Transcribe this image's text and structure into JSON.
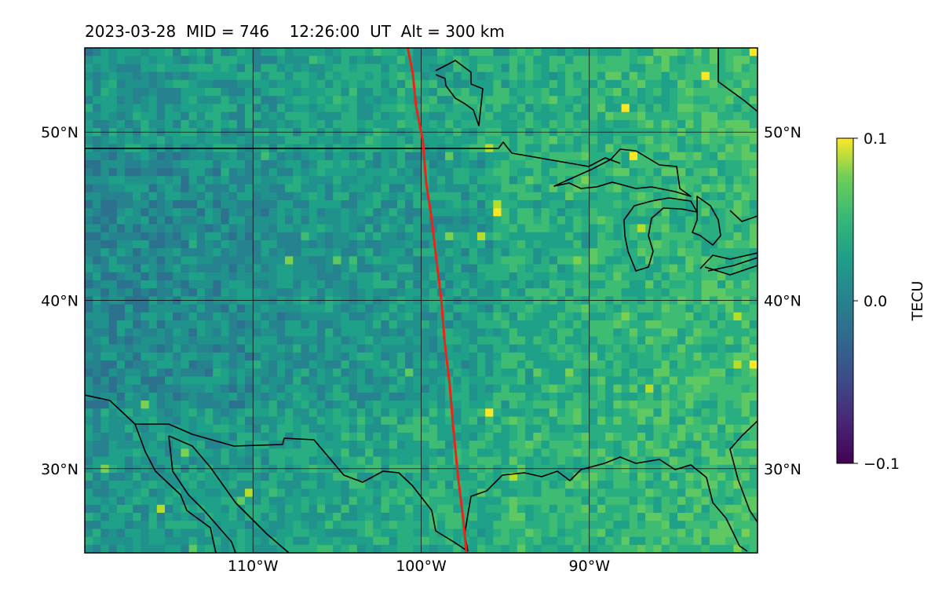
{
  "title": "2023-03-28  MID = 746    12:26:00  UT  Alt = 300 km",
  "map": {
    "extent": {
      "lon_min": -120,
      "lon_max": -80,
      "lat_min": 25,
      "lat_max": 55
    },
    "lat_ticks": [
      {
        "value": 50,
        "label": "50°N"
      },
      {
        "value": 40,
        "label": "40°N"
      },
      {
        "value": 30,
        "label": "30°N"
      }
    ],
    "lon_ticks": [
      {
        "value": -110,
        "label": "110°W"
      },
      {
        "value": -100,
        "label": "100°W"
      },
      {
        "value": -90,
        "label": "90°W"
      }
    ],
    "grid": true,
    "track": {
      "color": "#e8251b",
      "points": [
        [
          -100.8,
          55
        ],
        [
          -100.5,
          53.5
        ],
        [
          -100.3,
          51.5
        ],
        [
          -99.9,
          49.5
        ],
        [
          -99.7,
          47
        ],
        [
          -99.4,
          45
        ],
        [
          -99.1,
          42.5
        ],
        [
          -98.8,
          40
        ],
        [
          -98.6,
          37.5
        ],
        [
          -98.3,
          35
        ],
        [
          -98.1,
          32.5
        ],
        [
          -97.8,
          29.5
        ],
        [
          -97.5,
          27
        ],
        [
          -97.3,
          25
        ]
      ]
    }
  },
  "colorbar": {
    "label": "TECU",
    "colormap": "viridis",
    "min": -0.1,
    "max": 0.1,
    "ticks": [
      {
        "value": 0.1,
        "label": "0.1"
      },
      {
        "value": 0.0,
        "label": "0.0"
      },
      {
        "value": -0.1,
        "label": "−0.1"
      }
    ]
  }
}
